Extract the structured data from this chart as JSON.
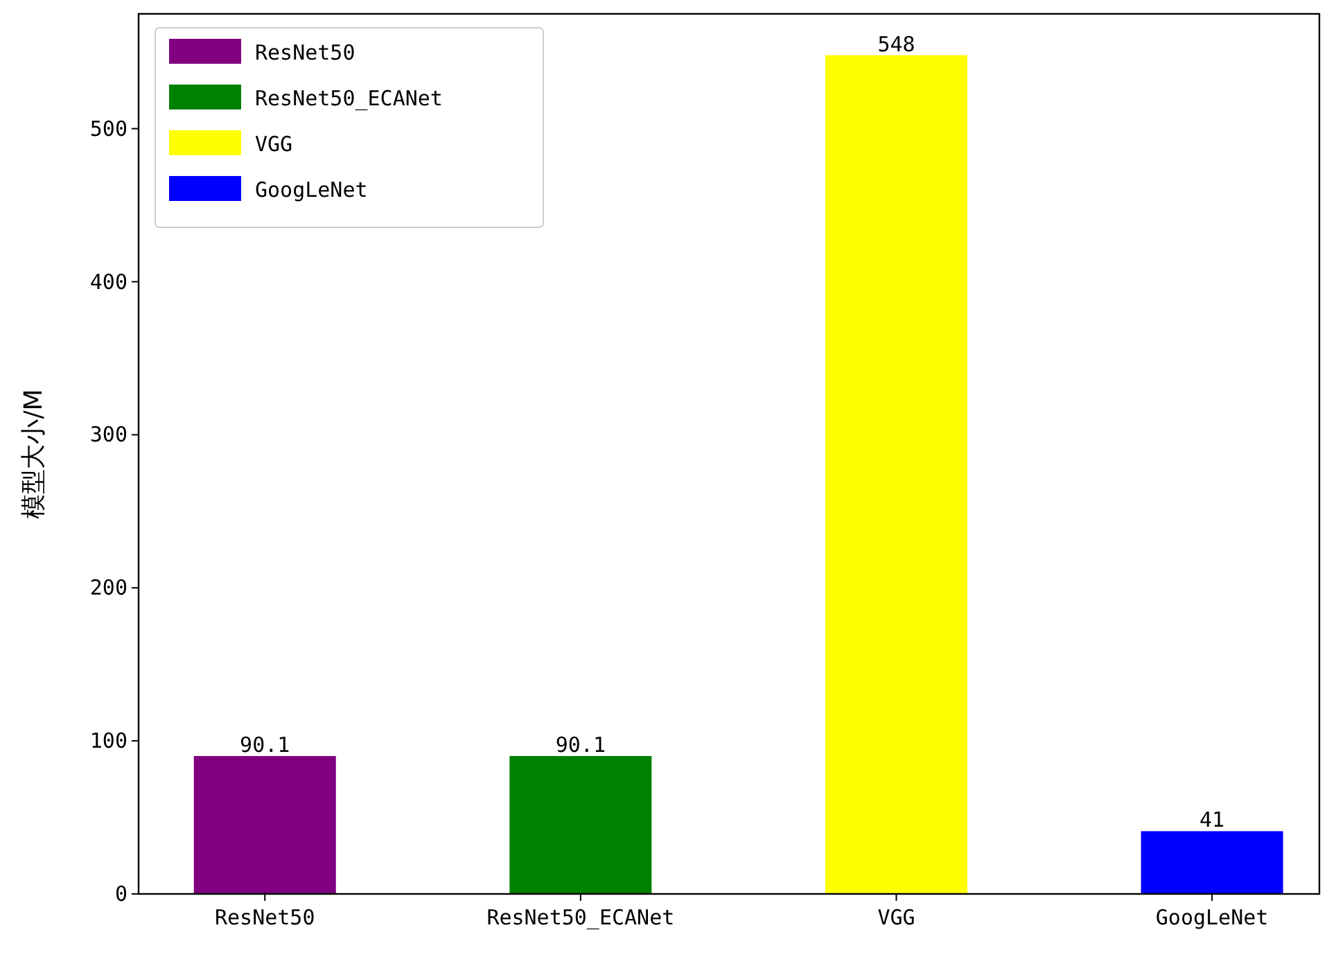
{
  "chart_data": {
    "type": "bar",
    "ylabel": "模型大小/M",
    "categories": [
      "ResNet50",
      "ResNet50_ECANet",
      "VGG",
      "GoogLeNet"
    ],
    "series": [
      {
        "name": "ResNet50",
        "color": "#800080",
        "values": [
          90.1,
          null,
          null,
          null
        ]
      },
      {
        "name": "ResNet50_ECANet",
        "color": "#008000",
        "values": [
          null,
          90.1,
          null,
          null
        ]
      },
      {
        "name": "VGG",
        "color": "#ffff00",
        "values": [
          null,
          null,
          548,
          null
        ]
      },
      {
        "name": "GoogLeNet",
        "color": "#0000ff",
        "values": [
          null,
          null,
          null,
          41
        ]
      }
    ],
    "ylim": [
      0,
      575
    ],
    "yticks": [
      0,
      100,
      200,
      300,
      400,
      500
    ],
    "data_labels": true,
    "legend": "top left"
  }
}
